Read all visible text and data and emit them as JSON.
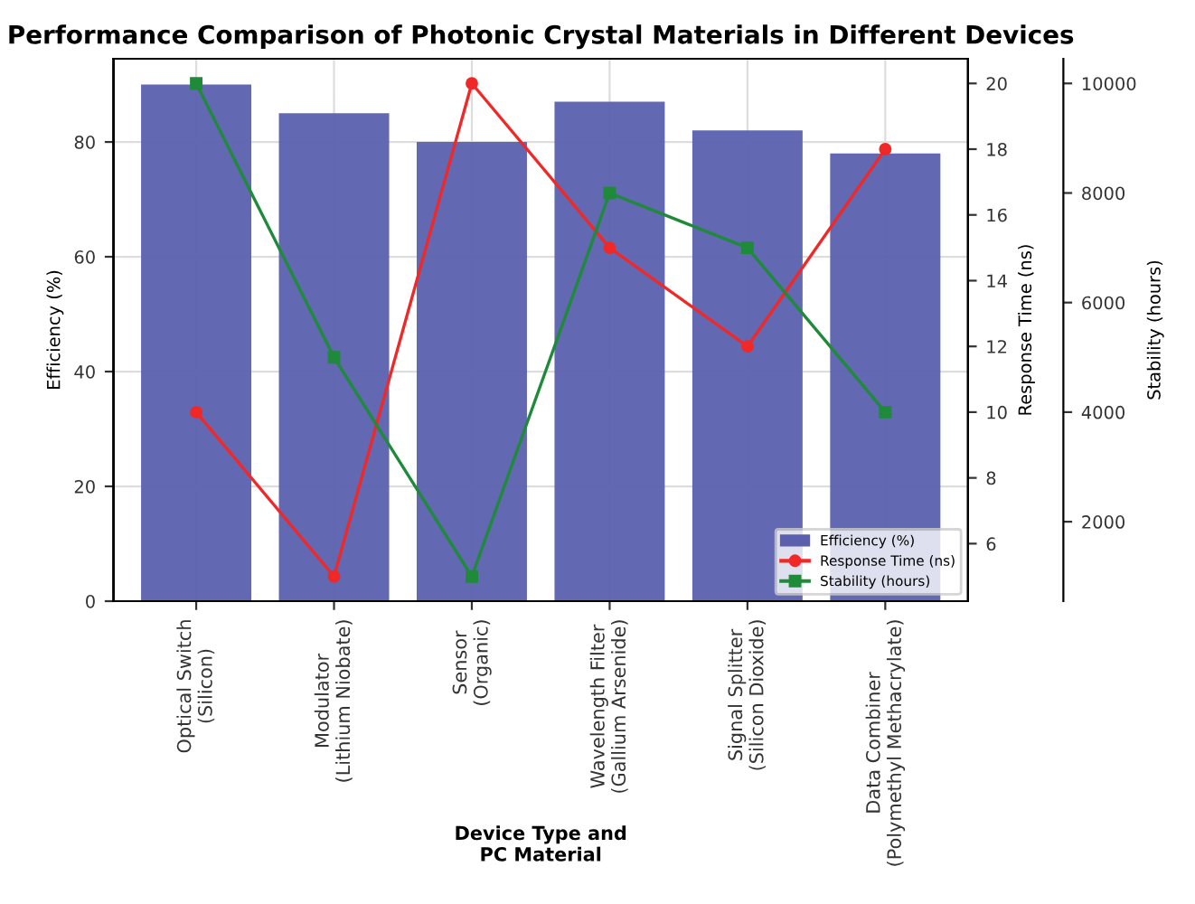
{
  "chart_data": {
    "type": "bar",
    "title": "Performance Comparison of Photonic Crystal Materials in Different Devices",
    "xlabel": "Device Type and\nPC Material",
    "ylabel": "Efficiency (%)",
    "y2label": "Response Time (ns)",
    "y3label": "Stability (hours)",
    "categories": [
      "Optical Switch\n(Silicon)",
      "Modulator\n(Lithium Niobate)",
      "Sensor\n(Organic)",
      "Wavelength Filter\n(Gallium Arsenide)",
      "Signal Splitter\n(Silicon Dioxide)",
      "Data Combiner\n(Polymethyl Methacrylate)"
    ],
    "series": [
      {
        "name": "Efficiency (%)",
        "color": "#5a60ad",
        "values": [
          90,
          85,
          80,
          87,
          82,
          78
        ]
      },
      {
        "name": "Response Time (ns)",
        "type": "line",
        "axis": "y2",
        "marker": "circle",
        "color": "#f02828",
        "values": [
          10,
          5,
          20,
          15,
          12,
          18
        ]
      },
      {
        "name": "Stability (hours)",
        "type": "line",
        "axis": "y3",
        "marker": "square",
        "color": "#1e8a3a",
        "values": [
          10000,
          5000,
          1000,
          8000,
          7000,
          4000
        ]
      }
    ],
    "ylim": [
      0,
      94.5
    ],
    "yticks": [
      0,
      20,
      40,
      60,
      80
    ],
    "y2lim": [
      4.25,
      20.75
    ],
    "y2ticks": [
      6,
      8,
      10,
      12,
      14,
      16,
      18,
      20
    ],
    "y3lim": [
      550,
      10450
    ],
    "y3ticks": [
      2000,
      4000,
      6000,
      8000,
      10000
    ],
    "grid": true,
    "legend": "bottom right"
  }
}
